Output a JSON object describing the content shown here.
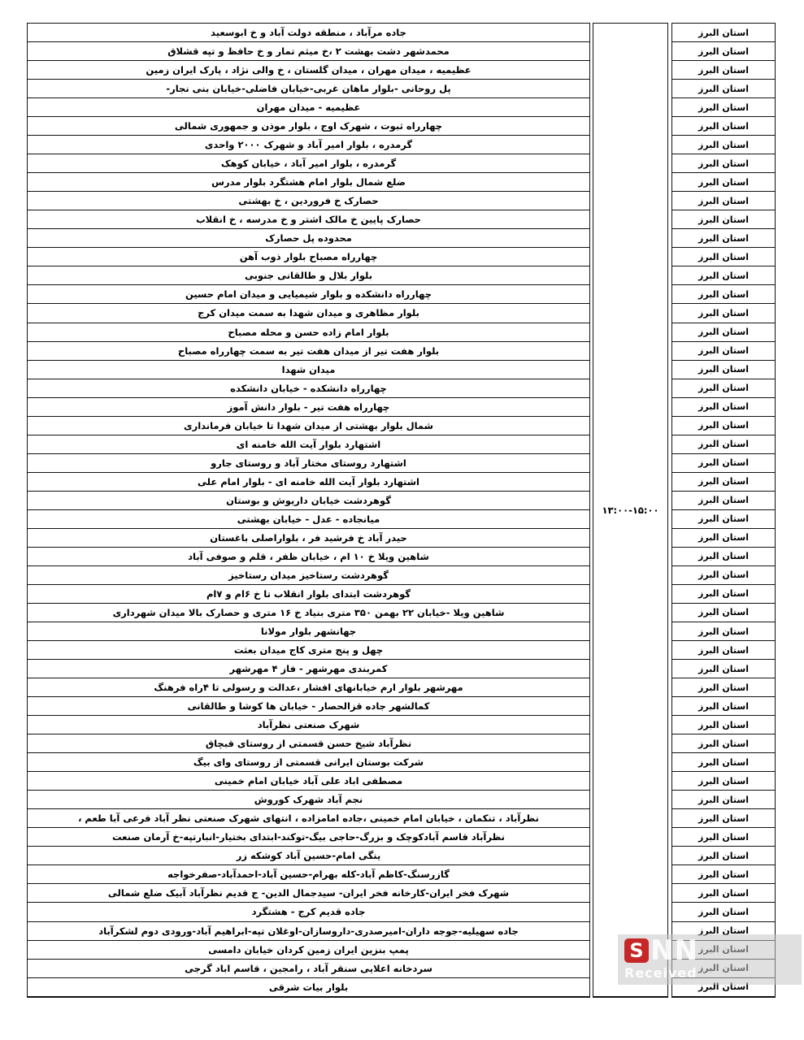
{
  "table": {
    "time_range": "۱۳:۰۰-۱۵:۰۰",
    "province_label": "استان البرز",
    "rows": [
      "جاده مرآباد ، منطقه دولت آباد و خ ابوسعید",
      "محمدشهر دشت بهشت ۲  ،خ  میثم تمار و خ حافظ و تپه قشلاق",
      "عظیمیه  ، میدان مهران ، میدان گلستان ، خ والی نژاد ، پارک ایران زمین",
      "پل روحانی  -بلوار ماهان غربی-خیابان فاضلی-خیابان بنی نجار-",
      "عظیمیه - میدان مهران",
      "چهارراه ثبوت ، شهرک اوج ، بلوار موذن و جمهوری شمالی",
      "گرمدره ، بلوار امیر آباد و شهرک ۲۰۰۰ واحدی",
      "گرمدره ، بلوار امیر آباد ، خیابان کوهک",
      "ضلع شمال بلوار امام هشتگرد بلوار مدرس",
      "حصارک خ فروردین ، خ بهشتی",
      "حصارک پایین خ مالک اشتر و خ مدرسه ، خ انقلاب",
      "محدوده پل حصارک",
      "چهارراه مصباح بلوار ذوب آهن",
      "بلوار بلال و طالقانی جنوبی",
      "چهارراه دانشکده و بلوار شیمیایی و میدان امام حسین",
      "بلوار مظاهری و میدان شهدا به سمت میدان کرج",
      "بلوار امام زاده حسن و محله مصباح",
      "بلوار هفت تیر از میدان هفت تیر به سمت چهارراه مصباح",
      "میدان شهدا",
      "چهارراه دانشکده - خیابان دانشکده",
      "چهارراه هفت تیر - بلوار دانش آموز",
      "شمال بلوار بهشتی از میدان شهدا تا خیابان فرمانداری",
      "اشتهارد بلوار آیت الله خامنه ای",
      "اشتهارد روستای مختار آباد  و  روستای جارو",
      "اشتهارد بلوار آیت الله خامنه ای - بلوار امام علی",
      "گوهردشت خیابان داریوش  و بوستان",
      "میانجاده - عدل -  خیابان بهشتی",
      "حیدر آباد خ فرشید فر ، بلواراصلی باغستان",
      "شاهین ویلا خ ۱۰ ام ،  خیابان ظفر ، قلم  و صوفی آباد",
      "گوهردشت رستاخیز میدان رستاخیز",
      "گوهردشت  ابتدای بلوار انقلاب تا خ ۶ام و ۷ام",
      "شاهین ویلا -خیابان ۲۲ بهمن ۳۵۰ متری بنیاد خ ۱۶ متری و حصارک بالا میدان شهرداری",
      "جهانشهر  بلوار مولانا",
      "چهل و پنج متری کاج  میدان بعثت",
      "کمربندی مهرشهر - فاز ۴ مهرشهر",
      "مهرشهر بلوار ارم خیابانهای افشار  ،عدالت و رسولی تا ۴راه فرهنگ",
      "کمالشهر جاده قزالحصار - خیابان ها کوشا و طالقانی",
      "شهرک صنعتی نظرآباد",
      "نظرآباد شیخ حسن قسمتی از روستای قبچاق",
      "شرکت بوستان ایرانی قسمتی از روستای وای بیگ",
      "مصطفی اباد علی آباد خیابان امام خمینی",
      "نجم آباد شهرک کوروش",
      "نظرآباد ، تنکمان ، خیابان امام خمینی  ،جاده امامزاده ،  انتهای شهرک صنعتی نظر آباد فرعی آبا طعم ،",
      "نظرآباد قاسم آبادکوچک و بزرگ-حاجی بیگ-توکند-ابتدای بختیار-انبارتپه-خ آرمان صنعت",
      "ینگی امام-حسین آباد کوشکه زر",
      "گازرسنگ-کاظم آباد-کله بهرام-حسین آباد-احمدآباد-صفرخواجه",
      "شهرک فخر ایران-کارخانه فخر ایران- سیدجمال الدین- ج قدیم نظرآباد آبیک ضلع شمالی",
      "جاده قدیم کرج - هشتگرد",
      "جاده سهیلیه-جوجه داران-امیرصدری-داروسازان-اوغلان تپه-ابراهیم آباد-ورودی دوم لشکرآباد",
      "پمپ بنزین ایران زمین کردان خیابان دامسی",
      "سردخانه اعلایی سنقر آباد ، رامجین ، قاسم اباد گرجی",
      "بلوار بیات شرقی"
    ]
  },
  "watermark": {
    "s_letter": "S",
    "nn_letters": "NN",
    "received_label": "Received",
    "badge_color": "#c62828",
    "overlay_color": "#c6c6c6"
  }
}
